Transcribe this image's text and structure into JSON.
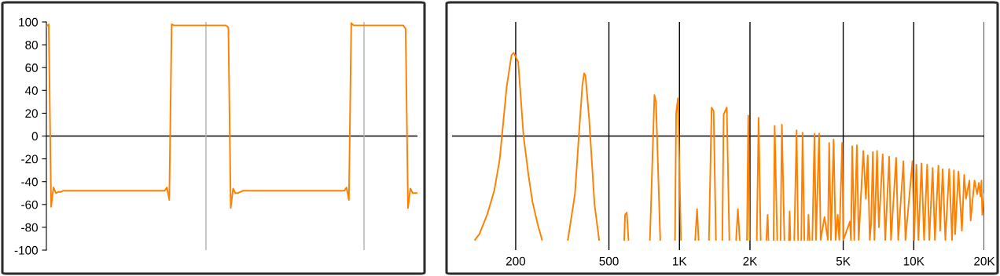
{
  "chart_data": [
    {
      "type": "line",
      "categories": [
        null,
        null,
        null,
        null,
        null,
        null,
        null,
        null,
        null,
        null,
        null,
        null,
        null,
        null,
        null,
        null,
        null,
        null,
        null,
        null,
        null,
        null,
        null,
        null,
        null,
        null,
        null,
        null,
        null,
        null,
        null,
        null,
        null,
        null,
        null,
        null,
        null,
        null,
        null,
        null,
        null,
        null,
        null,
        null,
        null,
        null,
        null,
        null,
        null,
        null,
        null,
        null,
        null,
        null,
        null,
        null,
        null,
        null,
        null,
        null,
        null,
        null,
        null,
        null,
        null,
        null,
        null,
        null,
        null,
        null,
        null,
        null,
        null,
        null,
        null,
        null,
        null,
        null,
        null,
        null,
        null,
        null,
        null,
        null,
        null,
        null,
        null,
        null,
        null,
        null,
        null,
        null,
        null,
        null,
        null,
        null,
        null,
        null,
        null,
        null,
        null,
        null,
        null,
        null,
        null,
        null,
        null,
        null,
        null,
        null,
        null,
        null,
        null,
        null,
        null,
        null,
        null,
        null,
        null,
        null,
        null,
        null,
        null,
        null,
        null,
        null,
        null,
        null,
        null,
        null,
        null,
        null,
        null,
        null,
        null,
        null,
        null,
        null,
        null,
        null,
        null,
        null,
        null,
        null,
        null,
        null,
        null,
        null,
        null,
        null,
        null,
        null,
        null,
        null,
        null,
        null,
        null,
        null
      ],
      "series": [
        {
          "color": "#ff8000",
          "values": [
            96,
            98,
            -62,
            -45,
            -50,
            -49,
            -49,
            -48,
            -48,
            -48,
            -48,
            -48,
            -48,
            -48,
            -48,
            -48,
            -48,
            -48,
            -48,
            -48,
            -48,
            -48,
            -48,
            -48,
            -48,
            -48,
            -48,
            -48,
            -48,
            -48,
            -48,
            -48,
            -48,
            -48,
            -48,
            -48,
            -48,
            -48,
            -48,
            -48,
            -48,
            -48,
            -48,
            -48,
            -48,
            -48,
            -48,
            -48,
            -48,
            -48,
            -48,
            -45,
            -56,
            98,
            97,
            97,
            97,
            97,
            97,
            97,
            97,
            97,
            97,
            97,
            97,
            97,
            97,
            97,
            97,
            97,
            97,
            97,
            97,
            97,
            97,
            97,
            97,
            95,
            -63,
            -46,
            -50,
            -50,
            -49,
            -48,
            -48,
            -48,
            -48,
            -48,
            -48,
            -48,
            -48,
            -48,
            -48,
            -48,
            -48,
            -48,
            -48,
            -48,
            -48,
            -48,
            -48,
            -48,
            -48,
            -48,
            -48,
            -48,
            -48,
            -48,
            -48,
            -48,
            -48,
            -48,
            -48,
            -48,
            -48,
            -48,
            -48,
            -48,
            -48,
            -48,
            -48,
            -48,
            -48,
            -48,
            -48,
            -48,
            -48,
            -45,
            -56,
            99,
            97,
            97,
            97,
            97,
            97,
            97,
            97,
            97,
            97,
            97,
            97,
            97,
            97,
            97,
            97,
            97,
            97,
            97,
            97,
            97,
            97,
            97,
            94,
            -63,
            -46,
            -50,
            -50,
            -50
          ]
        }
      ],
      "ylim": [
        -100,
        100
      ],
      "yticks": [
        -100,
        -80,
        -60,
        -40,
        -20,
        0,
        20,
        40,
        60,
        80,
        100
      ],
      "tick_labels": "y",
      "grid": false,
      "ref_lines": [
        {
          "axis": "y",
          "value": 0,
          "color": "#000000"
        }
      ]
    },
    {
      "type": "line",
      "log": "x",
      "xlim": [
        107,
        20000
      ],
      "xticks": [
        {
          "value": 200,
          "label": "200"
        },
        {
          "value": 500,
          "label": "500"
        },
        {
          "value": 1000,
          "label": "1K"
        },
        {
          "value": 2000,
          "label": "2K"
        },
        {
          "value": 5000,
          "label": "5K"
        },
        {
          "value": 10000,
          "label": "10K"
        },
        {
          "value": 20000,
          "label": "20K"
        }
      ],
      "ylim": [
        -100,
        100
      ],
      "tick_labels": "x",
      "grid": "x",
      "ref_lines": [
        {
          "axis": "y",
          "value": 0,
          "color": "#000000"
        }
      ],
      "series": [
        {
          "color": "#ff8000",
          "x": [
            134,
            140,
            151,
            162,
            171,
            183,
            192,
            196,
            205,
            216,
            227,
            236,
            248,
            259
          ],
          "values": [
            -91,
            -86,
            -69,
            -48,
            -20,
            43,
            71,
            73,
            65,
            0,
            -35,
            -58,
            -77,
            -91
          ]
        },
        {
          "color": "#ff8000",
          "x": [
            334,
            358,
            372,
            385,
            392,
            397,
            412,
            434,
            454
          ],
          "values": [
            -91,
            -51,
            0,
            44,
            55,
            53,
            14,
            -60,
            -91
          ]
        },
        {
          "color": "#ff8000",
          "x": [
            581,
            586,
            596,
            606
          ],
          "values": [
            -91,
            -69,
            -67,
            -91
          ]
        },
        {
          "color": "#ff8000",
          "x": [
            748,
            782,
            794,
            828
          ],
          "values": [
            -91,
            36,
            30,
            -91
          ]
        },
        {
          "color": "#ff8000",
          "x": [
            957,
            968,
            985,
            1015
          ],
          "values": [
            -91,
            20,
            33,
            -91
          ]
        },
        {
          "color": "#ff8000",
          "x": [
            1167,
            1189,
            1207
          ],
          "values": [
            -91,
            -64,
            -91
          ]
        },
        {
          "color": "#ff8000",
          "x": [
            1336,
            1372,
            1399,
            1431
          ],
          "values": [
            -91,
            25,
            22,
            -91
          ]
        },
        {
          "color": "#ff8000",
          "x": [
            1524,
            1544,
            1592,
            1633
          ],
          "values": [
            -91,
            19,
            25,
            -91
          ]
        },
        {
          "color": "#ff8000",
          "x": [
            1745,
            1776,
            1808
          ],
          "values": [
            -91,
            -64,
            -91
          ]
        },
        {
          "color": "#ff8000",
          "x": [
            1941,
            1967,
            1991
          ],
          "values": [
            -91,
            18,
            -91
          ]
        },
        {
          "color": "#ff8000",
          "x": [
            2138,
            2177,
            2222
          ],
          "values": [
            -91,
            16,
            -91
          ]
        },
        {
          "color": "#ff8000",
          "x": [
            2349,
            2379,
            2398
          ],
          "values": [
            -91,
            -69,
            -91
          ]
        },
        {
          "color": "#ff8000",
          "x": [
            2522,
            2549,
            2614
          ],
          "values": [
            -91,
            9,
            -91
          ]
        },
        {
          "color": "#ff8000",
          "x": [
            2701,
            2736,
            2805
          ],
          "values": [
            -91,
            10,
            -91
          ]
        },
        {
          "color": "#ff8000",
          "x": [
            2930,
            2953,
            2975
          ],
          "values": [
            -91,
            -66,
            -91
          ]
        },
        {
          "color": "#ff8000",
          "x": [
            3090,
            3162,
            3211
          ],
          "values": [
            -91,
            5,
            -91
          ]
        },
        {
          "color": "#ff8000",
          "x": [
            3311,
            3354,
            3413
          ],
          "values": [
            -91,
            3,
            -91
          ]
        },
        {
          "color": "#ff8000",
          "x": [
            3527,
            3554,
            3592
          ],
          "values": [
            -91,
            -69,
            -91
          ]
        },
        {
          "color": "#ff8000",
          "x": [
            3692,
            3769,
            3827,
            3945,
            4006,
            4160,
            4301,
            4356,
            4433,
            4550,
            4641,
            4737,
            4810,
            4948,
            5009,
            5341,
            5394,
            5464,
            5574,
            5720,
            5821,
            6092,
            6247,
            6362,
            6491,
            6575,
            6691,
            6794,
            6972,
            7096,
            7371,
            7560,
            7853,
            7998,
            8412,
            8587,
            9036,
            9218,
            9872,
            10050,
            10260,
            10470,
            10790,
            11070,
            11410,
            11650,
            12040,
            12310,
            12740,
            12960,
            13290,
            13640,
            14170,
            14570,
            14840,
            15020,
            15520,
            16050,
            16420,
            16710,
            17280,
            17490,
            18170,
            18650,
            18980,
            19270,
            19460,
            19610,
            20000
          ],
          "values": [
            -91,
            2,
            -91,
            2,
            -91,
            -71,
            -91,
            -6,
            -91,
            -3,
            -91,
            -69,
            -91,
            -6,
            -91,
            -75,
            -91,
            -9,
            -91,
            -8,
            -91,
            -13,
            -55,
            -17,
            -91,
            -77,
            -14,
            -91,
            -13,
            -80,
            -16,
            -91,
            -18,
            -91,
            -19,
            -91,
            -22,
            -91,
            -22,
            -91,
            -25,
            -91,
            -24,
            -91,
            -25,
            -91,
            -28,
            -91,
            -26,
            -83,
            -29,
            -91,
            -29,
            -91,
            -30,
            -86,
            -31,
            -83,
            -34,
            -55,
            -39,
            -74,
            -39,
            -51,
            -41,
            -53,
            -39,
            -69,
            -51
          ]
        }
      ]
    }
  ]
}
